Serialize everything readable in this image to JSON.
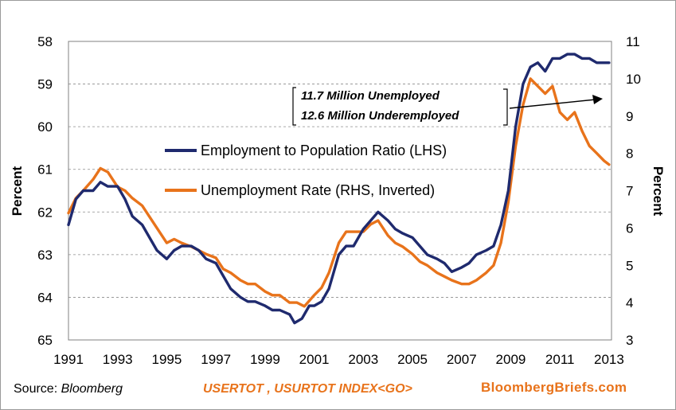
{
  "colors": {
    "employment_series": "#1f2a6e",
    "unemployment_series": "#e8731b",
    "gridline": "#8c8c8c",
    "footer_accent": "#e8731b"
  },
  "chart_data": {
    "type": "line",
    "title": "",
    "xlabel": "",
    "ylabel_left": "Percent",
    "ylabel_right": "Percent",
    "x_ticks": [
      "1991",
      "1993",
      "1995",
      "1997",
      "1999",
      "2001",
      "2003",
      "2005",
      "2007",
      "2009",
      "2011",
      "2013"
    ],
    "xlim": [
      1991,
      2013.1
    ],
    "y_left": {
      "ticks": [
        "58",
        "59",
        "60",
        "61",
        "62",
        "63",
        "64",
        "65"
      ],
      "range": [
        58,
        65
      ],
      "inverted": true
    },
    "y_right": {
      "ticks": [
        "11",
        "10",
        "9",
        "8",
        "7",
        "6",
        "5",
        "4",
        "3"
      ],
      "range": [
        3,
        11
      ],
      "inverted": false
    },
    "grid": {
      "horizontal": true,
      "style": "dashed"
    },
    "legend": {
      "placement": "center-left",
      "entries": [
        "Employment to Population Ratio (LHS)",
        "Unemployment Rate (RHS, Inverted)"
      ]
    },
    "annotation": {
      "lines": [
        "11.7 Million Unemployed",
        "12.6 Million Underemployed"
      ],
      "arrow": "points right toward the unemployment gap"
    },
    "series": [
      {
        "name": "Employment to Population Ratio (LHS)",
        "axis": "left",
        "x": [
          1991.0,
          1991.3,
          1991.6,
          1992.0,
          1992.3,
          1992.6,
          1993.0,
          1993.3,
          1993.6,
          1994.0,
          1994.3,
          1994.6,
          1995.0,
          1995.3,
          1995.6,
          1996.0,
          1996.3,
          1996.6,
          1997.0,
          1997.3,
          1997.6,
          1998.0,
          1998.3,
          1998.6,
          1999.0,
          1999.3,
          1999.6,
          2000.0,
          2000.2,
          2000.5,
          2000.8,
          2001.0,
          2001.3,
          2001.6,
          2002.0,
          2002.3,
          2002.6,
          2003.0,
          2003.3,
          2003.6,
          2004.0,
          2004.3,
          2004.6,
          2005.0,
          2005.3,
          2005.6,
          2006.0,
          2006.3,
          2006.6,
          2007.0,
          2007.3,
          2007.6,
          2008.0,
          2008.3,
          2008.6,
          2008.9,
          2009.2,
          2009.5,
          2009.8,
          2010.1,
          2010.4,
          2010.7,
          2011.0,
          2011.3,
          2011.6,
          2011.9,
          2012.2,
          2012.5,
          2012.8,
          2013.0
        ],
        "values": [
          62.3,
          61.7,
          61.5,
          61.5,
          61.3,
          61.4,
          61.4,
          61.7,
          62.1,
          62.3,
          62.6,
          62.9,
          63.1,
          62.9,
          62.8,
          62.8,
          62.9,
          63.1,
          63.2,
          63.5,
          63.8,
          64.0,
          64.1,
          64.1,
          64.2,
          64.3,
          64.3,
          64.4,
          64.6,
          64.5,
          64.2,
          64.2,
          64.1,
          63.8,
          63.0,
          62.8,
          62.8,
          62.4,
          62.2,
          62.0,
          62.2,
          62.4,
          62.5,
          62.6,
          62.8,
          63.0,
          63.1,
          63.2,
          63.4,
          63.3,
          63.2,
          63.0,
          62.9,
          62.8,
          62.3,
          61.5,
          60.0,
          59.0,
          58.6,
          58.5,
          58.7,
          58.4,
          58.4,
          58.3,
          58.3,
          58.4,
          58.4,
          58.5,
          58.5,
          58.5
        ]
      },
      {
        "name": "Unemployment Rate (RHS, Inverted)",
        "axis": "right",
        "x": [
          1991.0,
          1991.3,
          1991.6,
          1992.0,
          1992.3,
          1992.6,
          1993.0,
          1993.3,
          1993.6,
          1994.0,
          1994.3,
          1994.6,
          1995.0,
          1995.3,
          1995.6,
          1996.0,
          1996.3,
          1996.6,
          1997.0,
          1997.3,
          1997.6,
          1998.0,
          1998.3,
          1998.6,
          1999.0,
          1999.3,
          1999.6,
          2000.0,
          2000.3,
          2000.6,
          2001.0,
          2001.3,
          2001.6,
          2002.0,
          2002.3,
          2002.6,
          2003.0,
          2003.3,
          2003.6,
          2004.0,
          2004.3,
          2004.6,
          2005.0,
          2005.3,
          2005.6,
          2006.0,
          2006.3,
          2006.6,
          2007.0,
          2007.3,
          2007.6,
          2008.0,
          2008.3,
          2008.6,
          2008.9,
          2009.2,
          2009.5,
          2009.8,
          2010.1,
          2010.4,
          2010.7,
          2011.0,
          2011.3,
          2011.6,
          2011.9,
          2012.2,
          2012.5,
          2012.8,
          2013.0
        ],
        "values": [
          6.4,
          6.8,
          7.0,
          7.3,
          7.6,
          7.5,
          7.1,
          7.0,
          6.8,
          6.6,
          6.3,
          6.0,
          5.6,
          5.7,
          5.6,
          5.5,
          5.4,
          5.3,
          5.2,
          4.9,
          4.8,
          4.6,
          4.5,
          4.5,
          4.3,
          4.2,
          4.2,
          4.0,
          4.0,
          3.9,
          4.2,
          4.4,
          4.8,
          5.6,
          5.9,
          5.9,
          5.9,
          6.1,
          6.2,
          5.8,
          5.6,
          5.5,
          5.3,
          5.1,
          5.0,
          4.8,
          4.7,
          4.6,
          4.5,
          4.5,
          4.6,
          4.8,
          5.0,
          5.6,
          6.7,
          8.2,
          9.3,
          10.0,
          9.8,
          9.6,
          9.8,
          9.1,
          8.9,
          9.1,
          8.6,
          8.2,
          8.0,
          7.8,
          7.7
        ]
      }
    ]
  },
  "footer": {
    "source_label": "Source:",
    "source_name": "Bloomberg",
    "ticker": "USERTOT , USURTOT INDEX<GO>",
    "brand": "BloombergBriefs.com"
  }
}
